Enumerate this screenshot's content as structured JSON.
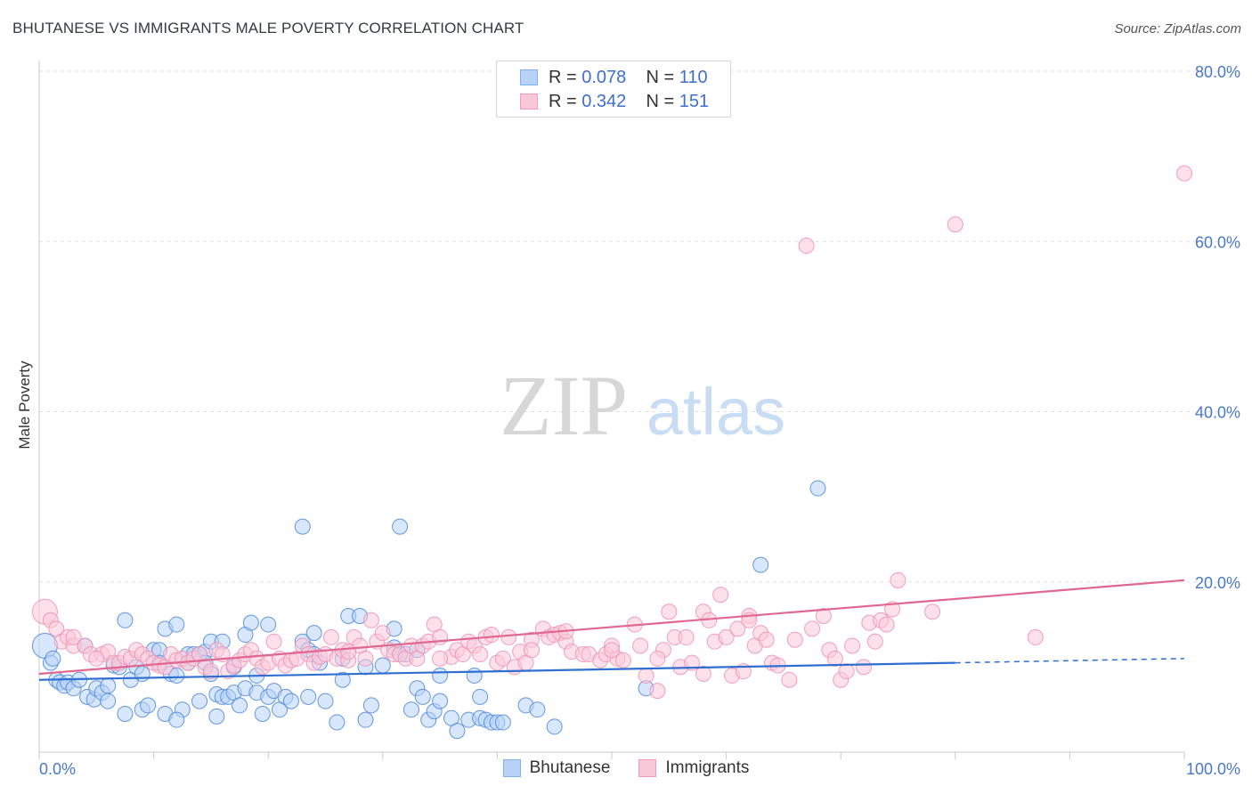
{
  "title": "BHUTANESE VS IMMIGRANTS MALE POVERTY CORRELATION CHART",
  "source": "Source: ZipAtlas.com",
  "watermark": {
    "zip": "ZIP",
    "atlas": "atlas"
  },
  "legend_top": [
    {
      "r_label": "R =",
      "r_value": "0.078",
      "n_label": "N =",
      "n_value": "110",
      "color": "#7fb0ef",
      "fill": "#b8d3f7"
    },
    {
      "r_label": "R =",
      "r_value": "0.342",
      "n_label": "N =",
      "n_value": "151",
      "color": "#f29cb8",
      "fill": "#f9c8d8"
    }
  ],
  "legend_bottom": [
    {
      "label": "Bhutanese",
      "color": "#7fb0ef",
      "fill": "#b8d3f7"
    },
    {
      "label": "Immigrants",
      "color": "#f29cb8",
      "fill": "#f9c8d8"
    }
  ],
  "chart_data": {
    "type": "scatter",
    "title": "BHUTANESE VS IMMIGRANTS MALE POVERTY CORRELATION CHART",
    "xlabel": "",
    "ylabel": "Male Poverty",
    "xlim": [
      0,
      100
    ],
    "ylim": [
      0,
      80
    ],
    "x_ticks": [
      "0.0%",
      "100.0%"
    ],
    "y_ticks": [
      "20.0%",
      "40.0%",
      "60.0%",
      "80.0%"
    ],
    "y_tick_values": [
      20,
      40,
      60,
      80
    ],
    "grid": true,
    "legend_position": "top-center",
    "series": [
      {
        "name": "Bhutanese",
        "color": "#4a86dd",
        "fill": "#b8d3f7",
        "trend": {
          "x": [
            0,
            80
          ],
          "y": [
            8.5,
            10.5
          ],
          "dashed_to": [
            100,
            11.0
          ],
          "color": "#2f6fd0"
        },
        "points": [
          [
            0.5,
            12.5
          ],
          [
            1,
            10.5
          ],
          [
            1.2,
            11
          ],
          [
            1.5,
            8.5
          ],
          [
            1.8,
            8.2
          ],
          [
            2.2,
            7.8
          ],
          [
            2.5,
            8.2
          ],
          [
            3,
            7.5
          ],
          [
            3.5,
            8.5
          ],
          [
            4,
            12.5
          ],
          [
            4.2,
            6.5
          ],
          [
            4.8,
            6.2
          ],
          [
            5,
            7.5
          ],
          [
            5.5,
            7
          ],
          [
            6,
            6
          ],
          [
            6.5,
            10.2
          ],
          [
            7,
            10
          ],
          [
            7.5,
            15.5
          ],
          [
            7.5,
            4.5
          ],
          [
            8,
            8.5
          ],
          [
            8.5,
            10
          ],
          [
            9,
            9.2
          ],
          [
            9,
            5
          ],
          [
            9.5,
            5.5
          ],
          [
            10,
            12
          ],
          [
            10.5,
            12
          ],
          [
            10.5,
            10.5
          ],
          [
            11,
            14.5
          ],
          [
            11,
            4.5
          ],
          [
            11.5,
            9.2
          ],
          [
            12,
            15
          ],
          [
            12,
            9
          ],
          [
            12.5,
            5
          ],
          [
            13,
            10.5
          ],
          [
            13,
            11.5
          ],
          [
            13.5,
            11.5
          ],
          [
            14,
            11.5
          ],
          [
            14,
            6
          ],
          [
            14.5,
            11.8
          ],
          [
            14.5,
            10.5
          ],
          [
            15,
            13
          ],
          [
            15,
            9.2
          ],
          [
            15.5,
            6.8
          ],
          [
            15.5,
            4.2
          ],
          [
            16,
            6.5
          ],
          [
            16.5,
            6.5
          ],
          [
            17,
            10
          ],
          [
            17,
            7
          ],
          [
            17.5,
            5.5
          ],
          [
            18,
            7.5
          ],
          [
            18,
            13.8
          ],
          [
            18.5,
            15.2
          ],
          [
            19,
            9
          ],
          [
            19,
            7
          ],
          [
            19.5,
            4.5
          ],
          [
            20,
            6.5
          ],
          [
            20,
            15
          ],
          [
            20.5,
            7.2
          ],
          [
            21,
            5
          ],
          [
            21.5,
            6.5
          ],
          [
            22,
            6
          ],
          [
            23,
            13
          ],
          [
            23.5,
            6.5
          ],
          [
            23.5,
            12
          ],
          [
            24,
            14
          ],
          [
            24,
            11.5
          ],
          [
            25,
            6
          ],
          [
            26,
            3.5
          ],
          [
            26.5,
            11
          ],
          [
            26.5,
            8.5
          ],
          [
            27,
            16
          ],
          [
            28,
            16
          ],
          [
            28.5,
            10
          ],
          [
            28.5,
            3.8
          ],
          [
            30,
            10.2
          ],
          [
            31,
            12.3
          ],
          [
            31,
            14.5
          ],
          [
            31.5,
            11.5
          ],
          [
            32,
            11.5
          ],
          [
            32.5,
            5
          ],
          [
            33,
            7.5
          ],
          [
            33.5,
            6.5
          ],
          [
            34,
            3.8
          ],
          [
            34.5,
            4.8
          ],
          [
            35,
            9
          ],
          [
            35,
            6
          ],
          [
            36,
            4
          ],
          [
            36.5,
            2.5
          ],
          [
            37.5,
            3.8
          ],
          [
            38,
            9
          ],
          [
            38.5,
            4
          ],
          [
            38.5,
            6.5
          ],
          [
            39,
            3.8
          ],
          [
            39.5,
            3.5
          ],
          [
            40,
            3.5
          ],
          [
            40.5,
            3.5
          ],
          [
            42.5,
            5.5
          ],
          [
            43.5,
            5
          ],
          [
            45,
            3
          ],
          [
            23,
            26.5
          ],
          [
            31.5,
            26.5
          ],
          [
            63,
            22
          ],
          [
            68,
            31
          ],
          [
            53,
            7.5
          ],
          [
            24.5,
            10.5
          ],
          [
            16,
            13
          ],
          [
            33,
            12
          ],
          [
            29,
            5.5
          ],
          [
            12,
            3.8
          ],
          [
            6,
            7.8
          ]
        ]
      },
      {
        "name": "Immigrants",
        "color": "#ef8fb0",
        "fill": "#f9c8d8",
        "trend": {
          "x": [
            0,
            100
          ],
          "y": [
            9.2,
            20.2
          ],
          "color": "#e06890"
        },
        "points": [
          [
            0.5,
            16.5
          ],
          [
            1,
            15.5
          ],
          [
            1.5,
            14.5
          ],
          [
            2,
            13
          ],
          [
            2.5,
            13.5
          ],
          [
            3,
            12.5
          ],
          [
            4,
            12.5
          ],
          [
            4.5,
            11.5
          ],
          [
            5.5,
            11.5
          ],
          [
            6,
            11.8
          ],
          [
            6.5,
            10.5
          ],
          [
            7,
            10.5
          ],
          [
            7.5,
            11.2
          ],
          [
            8,
            11
          ],
          [
            8.5,
            12
          ],
          [
            9,
            11.5
          ],
          [
            9.5,
            11
          ],
          [
            10,
            10.5
          ],
          [
            10.5,
            10.2
          ],
          [
            11,
            10
          ],
          [
            11.5,
            11.5
          ],
          [
            12,
            10.8
          ],
          [
            12.5,
            11
          ],
          [
            13,
            10.5
          ],
          [
            13.5,
            11
          ],
          [
            14,
            11.5
          ],
          [
            14.5,
            10
          ],
          [
            15,
            9.5
          ],
          [
            15.5,
            12
          ],
          [
            16,
            11.5
          ],
          [
            16.5,
            9.5
          ],
          [
            17,
            10.2
          ],
          [
            17.5,
            10.8
          ],
          [
            18,
            11.5
          ],
          [
            18.5,
            12
          ],
          [
            19,
            11
          ],
          [
            19.5,
            10
          ],
          [
            20,
            10.5
          ],
          [
            20.5,
            13
          ],
          [
            21,
            11
          ],
          [
            21.5,
            10.2
          ],
          [
            22,
            10.8
          ],
          [
            22.5,
            11
          ],
          [
            23,
            12.5
          ],
          [
            23.5,
            11.5
          ],
          [
            24,
            10.5
          ],
          [
            24.5,
            11.2
          ],
          [
            25,
            11.5
          ],
          [
            25.5,
            13.5
          ],
          [
            26,
            11
          ],
          [
            26.5,
            12
          ],
          [
            27,
            10.8
          ],
          [
            27.5,
            13.5
          ],
          [
            28,
            12.5
          ],
          [
            28.5,
            11
          ],
          [
            29,
            15.5
          ],
          [
            29.5,
            13
          ],
          [
            30,
            14
          ],
          [
            30.5,
            12
          ],
          [
            31,
            11.5
          ],
          [
            31.5,
            11.5
          ],
          [
            32,
            11
          ],
          [
            32.5,
            12.5
          ],
          [
            33,
            11
          ],
          [
            33.5,
            12.5
          ],
          [
            34,
            13
          ],
          [
            34.5,
            15
          ],
          [
            35,
            13.5
          ],
          [
            36,
            11.2
          ],
          [
            36.5,
            12
          ],
          [
            37,
            11.5
          ],
          [
            37.5,
            13
          ],
          [
            38,
            12.5
          ],
          [
            38.5,
            11.5
          ],
          [
            39,
            13.5
          ],
          [
            39.5,
            13.8
          ],
          [
            40,
            10.5
          ],
          [
            40.5,
            11
          ],
          [
            41,
            13.5
          ],
          [
            41.5,
            10
          ],
          [
            42,
            11.8
          ],
          [
            42.5,
            10.5
          ],
          [
            43,
            13.2
          ],
          [
            44,
            14.5
          ],
          [
            44.5,
            13.5
          ],
          [
            45,
            13.8
          ],
          [
            45.5,
            14
          ],
          [
            46,
            13
          ],
          [
            46.5,
            11.8
          ],
          [
            47.5,
            11.5
          ],
          [
            48,
            11.5
          ],
          [
            49,
            10.8
          ],
          [
            49.5,
            11.5
          ],
          [
            50,
            12.5
          ],
          [
            50.5,
            11
          ],
          [
            51,
            10.8
          ],
          [
            52,
            15
          ],
          [
            52.5,
            12.5
          ],
          [
            53,
            9
          ],
          [
            54,
            7.2
          ],
          [
            54.5,
            12
          ],
          [
            55,
            16.5
          ],
          [
            55.5,
            13.5
          ],
          [
            56,
            10
          ],
          [
            56.5,
            13.5
          ],
          [
            57,
            10.5
          ],
          [
            58,
            16.5
          ],
          [
            58.5,
            15.5
          ],
          [
            59,
            13
          ],
          [
            59.5,
            18.5
          ],
          [
            60,
            13.5
          ],
          [
            60.5,
            9
          ],
          [
            61,
            14.5
          ],
          [
            61.5,
            9.5
          ],
          [
            62,
            16
          ],
          [
            62.5,
            12.5
          ],
          [
            63,
            14
          ],
          [
            63.5,
            13.2
          ],
          [
            64,
            10.5
          ],
          [
            64.5,
            10.2
          ],
          [
            65.5,
            8.5
          ],
          [
            66,
            13.2
          ],
          [
            67.5,
            14.5
          ],
          [
            68.5,
            16
          ],
          [
            69,
            12
          ],
          [
            69.5,
            11
          ],
          [
            70,
            8.5
          ],
          [
            70.5,
            9.5
          ],
          [
            71,
            12.5
          ],
          [
            72,
            10
          ],
          [
            72.5,
            15.2
          ],
          [
            73,
            13
          ],
          [
            73.5,
            15.5
          ],
          [
            74,
            15
          ],
          [
            74.5,
            16.8
          ],
          [
            75,
            20.2
          ],
          [
            78,
            16.5
          ],
          [
            87,
            13.5
          ],
          [
            67,
            59.5
          ],
          [
            80,
            62
          ],
          [
            100,
            68
          ],
          [
            3,
            13.5
          ],
          [
            5,
            11
          ],
          [
            27,
            11.8
          ],
          [
            35,
            11
          ],
          [
            43,
            12
          ],
          [
            54,
            11
          ],
          [
            46,
            14.2
          ],
          [
            58,
            9.2
          ],
          [
            62,
            15.5
          ],
          [
            50,
            12
          ]
        ]
      }
    ]
  }
}
